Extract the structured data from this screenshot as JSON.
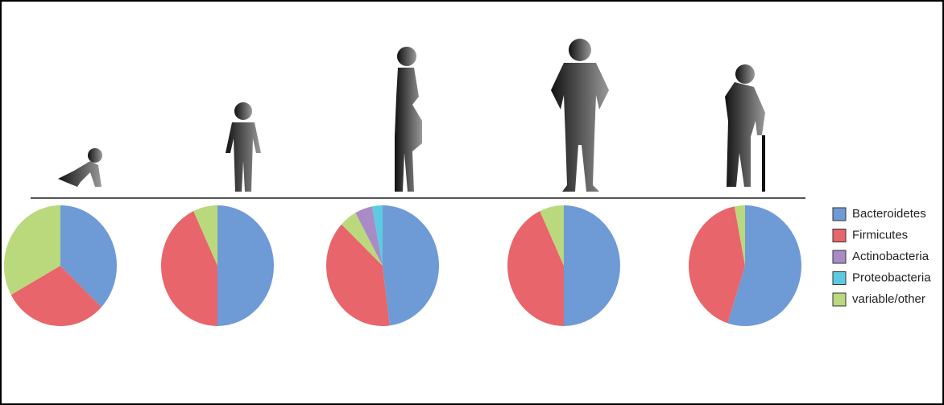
{
  "chart_data": {
    "type": "pie",
    "categories": [
      "Bacteroidetes",
      "Firmicutes",
      "Actinobacteria",
      "Proteobacteria",
      "variable/other"
    ],
    "colors": [
      "#6e9ad6",
      "#e8656b",
      "#a98cc6",
      "#5ccbe2",
      "#b9d97c"
    ],
    "pies": [
      [
        37,
        30,
        0,
        0,
        33
      ],
      [
        50,
        43,
        0,
        0,
        7
      ],
      [
        48,
        39,
        5,
        3,
        5
      ],
      [
        50,
        43,
        0,
        0,
        7
      ],
      [
        55,
        42,
        0,
        0,
        3
      ]
    ]
  }
}
